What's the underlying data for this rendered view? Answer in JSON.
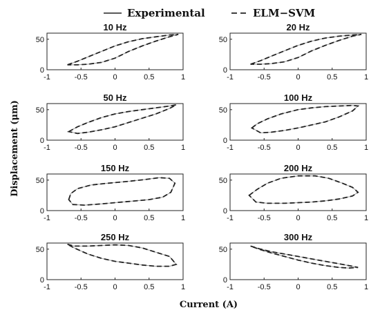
{
  "chart_data": {
    "type": "line",
    "xlabel": "Current (A)",
    "ylabel": "Displacement (μm)",
    "legend": {
      "placement": "top",
      "entries": [
        {
          "name": "Experimental",
          "style": "solid"
        },
        {
          "name": "ELM−SVM",
          "style": "dashed"
        }
      ]
    },
    "x_ticks": [
      "-1",
      "-0.5",
      "0",
      "0.5",
      "1"
    ],
    "y_ticks": [
      "0",
      "50"
    ],
    "xlim": [
      -1,
      1
    ],
    "ylim": [
      0,
      60
    ],
    "grid": false,
    "line_color": "#222222",
    "panels": [
      {
        "title": "10 Hz",
        "upper": [
          [
            -0.7,
            8
          ],
          [
            -0.55,
            14
          ],
          [
            -0.4,
            21
          ],
          [
            -0.2,
            30
          ],
          [
            0,
            39
          ],
          [
            0.2,
            46
          ],
          [
            0.4,
            51
          ],
          [
            0.6,
            54
          ],
          [
            0.8,
            57
          ],
          [
            0.93,
            58
          ]
        ],
        "lower": [
          [
            0.93,
            58
          ],
          [
            0.8,
            54
          ],
          [
            0.6,
            47
          ],
          [
            0.4,
            39
          ],
          [
            0.2,
            30
          ],
          [
            0,
            19
          ],
          [
            -0.2,
            12
          ],
          [
            -0.4,
            9
          ],
          [
            -0.55,
            8
          ],
          [
            -0.7,
            8
          ]
        ]
      },
      {
        "title": "20 Hz",
        "upper": [
          [
            -0.7,
            9
          ],
          [
            -0.55,
            15
          ],
          [
            -0.4,
            22
          ],
          [
            -0.2,
            31
          ],
          [
            0,
            40
          ],
          [
            0.2,
            47
          ],
          [
            0.4,
            52
          ],
          [
            0.6,
            55
          ],
          [
            0.8,
            57
          ],
          [
            0.93,
            58
          ]
        ],
        "lower": [
          [
            0.93,
            58
          ],
          [
            0.8,
            55
          ],
          [
            0.6,
            48
          ],
          [
            0.4,
            40
          ],
          [
            0.2,
            31
          ],
          [
            0,
            20
          ],
          [
            -0.2,
            13
          ],
          [
            -0.4,
            10
          ],
          [
            -0.55,
            9
          ],
          [
            -0.7,
            9
          ]
        ]
      },
      {
        "title": "50 Hz",
        "upper": [
          [
            -0.68,
            14
          ],
          [
            -0.55,
            22
          ],
          [
            -0.4,
            29
          ],
          [
            -0.2,
            37
          ],
          [
            0,
            43
          ],
          [
            0.2,
            47
          ],
          [
            0.4,
            50
          ],
          [
            0.6,
            53
          ],
          [
            0.8,
            56
          ],
          [
            0.9,
            58
          ]
        ],
        "lower": [
          [
            0.9,
            58
          ],
          [
            0.8,
            52
          ],
          [
            0.6,
            43
          ],
          [
            0.4,
            36
          ],
          [
            0.2,
            29
          ],
          [
            0,
            22
          ],
          [
            -0.2,
            17
          ],
          [
            -0.4,
            13
          ],
          [
            -0.55,
            11
          ],
          [
            -0.68,
            14
          ]
        ]
      },
      {
        "title": "100 Hz",
        "upper": [
          [
            -0.68,
            20
          ],
          [
            -0.6,
            27
          ],
          [
            -0.45,
            35
          ],
          [
            -0.25,
            43
          ],
          [
            0,
            50
          ],
          [
            0.2,
            53
          ],
          [
            0.4,
            55
          ],
          [
            0.6,
            56
          ],
          [
            0.8,
            57
          ],
          [
            0.88,
            56
          ]
        ],
        "lower": [
          [
            0.88,
            56
          ],
          [
            0.8,
            48
          ],
          [
            0.6,
            38
          ],
          [
            0.4,
            30
          ],
          [
            0.2,
            25
          ],
          [
            0,
            20
          ],
          [
            -0.2,
            16
          ],
          [
            -0.4,
            13
          ],
          [
            -0.55,
            12
          ],
          [
            -0.68,
            20
          ]
        ]
      },
      {
        "title": "150 Hz",
        "upper": [
          [
            -0.68,
            18
          ],
          [
            -0.65,
            28
          ],
          [
            -0.55,
            36
          ],
          [
            -0.35,
            42
          ],
          [
            -0.1,
            45
          ],
          [
            0.2,
            48
          ],
          [
            0.45,
            51
          ],
          [
            0.65,
            54
          ],
          [
            0.8,
            53
          ],
          [
            0.88,
            45
          ]
        ],
        "lower": [
          [
            0.88,
            45
          ],
          [
            0.82,
            30
          ],
          [
            0.7,
            22
          ],
          [
            0.5,
            18
          ],
          [
            0.2,
            15
          ],
          [
            0,
            13
          ],
          [
            -0.2,
            11
          ],
          [
            -0.45,
            9
          ],
          [
            -0.62,
            10
          ],
          [
            -0.68,
            18
          ]
        ]
      },
      {
        "title": "200 Hz",
        "upper": [
          [
            -0.72,
            25
          ],
          [
            -0.6,
            35
          ],
          [
            -0.45,
            45
          ],
          [
            -0.25,
            53
          ],
          [
            0,
            57
          ],
          [
            0.25,
            57
          ],
          [
            0.45,
            53
          ],
          [
            0.65,
            45
          ],
          [
            0.8,
            38
          ],
          [
            0.88,
            30
          ]
        ],
        "lower": [
          [
            0.88,
            30
          ],
          [
            0.8,
            24
          ],
          [
            0.6,
            19
          ],
          [
            0.4,
            16
          ],
          [
            0.2,
            14
          ],
          [
            0,
            13
          ],
          [
            -0.2,
            12
          ],
          [
            -0.45,
            12
          ],
          [
            -0.62,
            14
          ],
          [
            -0.72,
            25
          ]
        ]
      },
      {
        "title": "250 Hz",
        "upper": [
          [
            -0.7,
            58
          ],
          [
            -0.6,
            55
          ],
          [
            -0.4,
            55
          ],
          [
            -0.2,
            56
          ],
          [
            0,
            57
          ],
          [
            0.2,
            56
          ],
          [
            0.4,
            52
          ],
          [
            0.6,
            45
          ],
          [
            0.8,
            38
          ],
          [
            0.9,
            25
          ]
        ],
        "lower": [
          [
            0.9,
            25
          ],
          [
            0.8,
            22
          ],
          [
            0.6,
            22
          ],
          [
            0.4,
            24
          ],
          [
            0.2,
            27
          ],
          [
            0,
            30
          ],
          [
            -0.2,
            35
          ],
          [
            -0.4,
            42
          ],
          [
            -0.6,
            52
          ],
          [
            -0.7,
            58
          ]
        ]
      },
      {
        "title": "300 Hz",
        "upper": [
          [
            -0.7,
            55
          ],
          [
            -0.55,
            50
          ],
          [
            -0.4,
            46
          ],
          [
            -0.2,
            42
          ],
          [
            0,
            38
          ],
          [
            0.2,
            34
          ],
          [
            0.4,
            30
          ],
          [
            0.6,
            26
          ],
          [
            0.75,
            23
          ],
          [
            0.88,
            20
          ]
        ],
        "lower": [
          [
            0.88,
            20
          ],
          [
            0.75,
            19
          ],
          [
            0.6,
            20
          ],
          [
            0.4,
            23
          ],
          [
            0.2,
            27
          ],
          [
            0,
            32
          ],
          [
            -0.2,
            38
          ],
          [
            -0.4,
            44
          ],
          [
            -0.55,
            49
          ],
          [
            -0.7,
            55
          ]
        ]
      }
    ]
  }
}
